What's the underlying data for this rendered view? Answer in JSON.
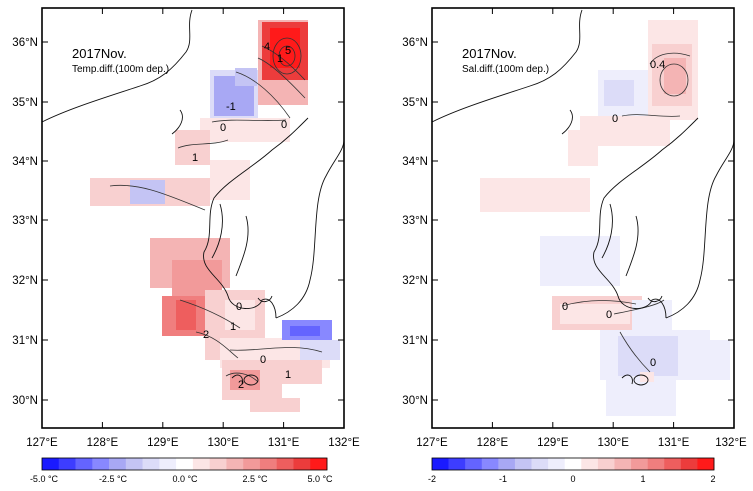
{
  "left_panel": {
    "title": "2017Nov.",
    "subtitle": "Temp.diff.(100m dep.)",
    "contour_labels": [
      "-1",
      "0",
      "0",
      "1",
      "4",
      "5",
      "1",
      "0",
      "1",
      "2",
      "0",
      "1",
      "2"
    ],
    "colorbar_labels": [
      "-5.0 °C",
      "-2.5 °C",
      "0.0 °C",
      "2.5 °C",
      "5.0 °C"
    ]
  },
  "right_panel": {
    "title": "2017Nov.",
    "subtitle": "Sal.diff.(100m dep.)",
    "contour_labels": [
      "0.4",
      "0",
      "0",
      "0",
      "0"
    ],
    "colorbar_labels": [
      "-2",
      "-1",
      "0",
      "1",
      "2"
    ]
  },
  "axes": {
    "x_ticks": [
      "127°E",
      "128°E",
      "129°E",
      "130°E",
      "131°E",
      "132°E"
    ],
    "y_ticks": [
      "36°N",
      "35°N",
      "34°N",
      "33°N",
      "32°N",
      "31°N",
      "30°N"
    ]
  },
  "colors": {
    "scale": [
      "#1a1aff",
      "#3d3dff",
      "#6464ff",
      "#8888ff",
      "#a8a8f4",
      "#c4c4f4",
      "#dcdcf8",
      "#eeeefc",
      "#ffffff",
      "#fce6e6",
      "#f8d0d0",
      "#f4b4b4",
      "#f29a9a",
      "#f07e7e",
      "#ee5e5e",
      "#ec3c3c",
      "#ff1a1a"
    ]
  }
}
